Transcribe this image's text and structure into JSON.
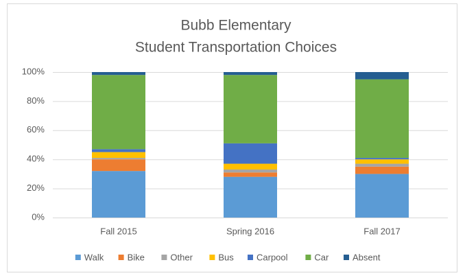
{
  "chart_data": {
    "type": "stacked_bar",
    "title": [
      "Bubb Elementary",
      "Student Transportation Choices"
    ],
    "categories": [
      "Fall 2015",
      "Spring 2016",
      "Fall 2017"
    ],
    "series": [
      {
        "name": "Walk",
        "color": "#5b9bd5",
        "values": [
          32,
          28,
          30
        ]
      },
      {
        "name": "Bike",
        "color": "#ed7d31",
        "values": [
          8,
          3,
          5
        ]
      },
      {
        "name": "Other",
        "color": "#a5a5a5",
        "values": [
          1,
          2,
          2
        ]
      },
      {
        "name": "Bus",
        "color": "#ffc000",
        "values": [
          4,
          4,
          3
        ]
      },
      {
        "name": "Carpool",
        "color": "#4472c4",
        "values": [
          2,
          14,
          1
        ]
      },
      {
        "name": "Car",
        "color": "#70ad47",
        "values": [
          51,
          47,
          54
        ]
      },
      {
        "name": "Absent",
        "color": "#255e91",
        "values": [
          2,
          2,
          5
        ]
      }
    ],
    "ylim": [
      0,
      100
    ],
    "yticks": [
      {
        "value": 0,
        "label": "0%"
      },
      {
        "value": 20,
        "label": "20%"
      },
      {
        "value": 40,
        "label": "40%"
      },
      {
        "value": 60,
        "label": "60%"
      },
      {
        "value": 80,
        "label": "80%"
      },
      {
        "value": 100,
        "label": "100%"
      }
    ],
    "grid": true,
    "legend": "bottom"
  }
}
